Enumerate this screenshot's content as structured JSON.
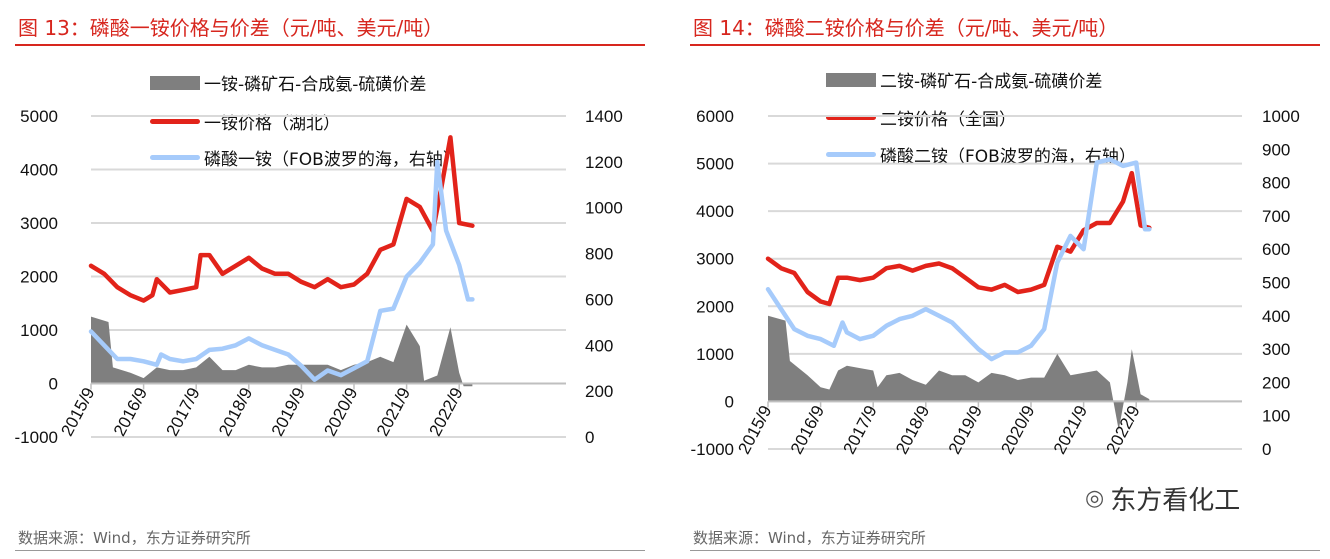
{
  "watermark": "东方看化工",
  "chart_data": [
    {
      "type": "line+area",
      "title": "图 13：磷酸一铵价格与价差（元/吨、美元/吨）",
      "source": "数据来源：Wind，东方证券研究所",
      "x_ticks": [
        "2015/9",
        "2016/9",
        "2017/9",
        "2018/9",
        "2019/9",
        "2020/9",
        "2021/9",
        "2022/9"
      ],
      "y_left": {
        "range": [
          -1000,
          5000
        ],
        "ticks": [
          "-1000",
          "0",
          "1000",
          "2000",
          "3000",
          "4000",
          "5000"
        ]
      },
      "y_right": {
        "range": [
          0,
          1400
        ],
        "ticks": [
          "0",
          "200",
          "400",
          "600",
          "800",
          "1000",
          "1200",
          "1400"
        ]
      },
      "grid": true,
      "legend_placement": "top-center",
      "series": [
        {
          "name": "一铵-磷矿石-合成氨-硫磺价差",
          "kind": "area",
          "axis": "left",
          "color": "#7f7f7f",
          "x": [
            "2015-09",
            "2016-01",
            "2016-02",
            "2016-06",
            "2016-09",
            "2016-12",
            "2017-03",
            "2017-06",
            "2017-09",
            "2017-12",
            "2018-03",
            "2018-06",
            "2018-09",
            "2018-12",
            "2019-03",
            "2019-06",
            "2019-09",
            "2019-12",
            "2020-03",
            "2020-06",
            "2020-09",
            "2020-12",
            "2021-03",
            "2021-06",
            "2021-09",
            "2021-12",
            "2022-01",
            "2022-04",
            "2022-07",
            "2022-09",
            "2022-10",
            "2022-12"
          ],
          "y": [
            1250,
            1150,
            300,
            200,
            100,
            300,
            250,
            250,
            300,
            500,
            250,
            250,
            350,
            300,
            300,
            350,
            350,
            350,
            350,
            250,
            350,
            400,
            500,
            400,
            1100,
            700,
            50,
            150,
            1050,
            200,
            -50,
            -50
          ]
        },
        {
          "name": "一铵价格（湖北）",
          "kind": "line",
          "axis": "left",
          "color": "#e2231a",
          "x": [
            "2015-09",
            "2015-12",
            "2016-03",
            "2016-06",
            "2016-09",
            "2016-11",
            "2016-12",
            "2017-03",
            "2017-06",
            "2017-09",
            "2017-10",
            "2017-12",
            "2018-03",
            "2018-06",
            "2018-09",
            "2018-12",
            "2019-03",
            "2019-06",
            "2019-09",
            "2019-12",
            "2020-03",
            "2020-06",
            "2020-09",
            "2020-12",
            "2021-03",
            "2021-06",
            "2021-09",
            "2021-12",
            "2022-03",
            "2022-05",
            "2022-07",
            "2022-09",
            "2022-12"
          ],
          "y": [
            2200,
            2050,
            1800,
            1650,
            1550,
            1650,
            1950,
            1700,
            1750,
            1800,
            2400,
            2400,
            2050,
            2200,
            2350,
            2150,
            2050,
            2050,
            1900,
            1800,
            1950,
            1800,
            1850,
            2050,
            2500,
            2600,
            3450,
            3300,
            2850,
            3700,
            4600,
            3000,
            2950
          ]
        },
        {
          "name": "磷酸一铵（FOB波罗的海，右轴）",
          "kind": "line",
          "axis": "right",
          "color": "#a6cbfb",
          "x": [
            "2015-09",
            "2015-12",
            "2016-03",
            "2016-06",
            "2016-09",
            "2016-12",
            "2017-01",
            "2017-03",
            "2017-06",
            "2017-09",
            "2017-12",
            "2018-03",
            "2018-06",
            "2018-09",
            "2018-12",
            "2019-03",
            "2019-06",
            "2019-09",
            "2019-12",
            "2020-03",
            "2020-06",
            "2020-09",
            "2020-12",
            "2021-03",
            "2021-06",
            "2021-09",
            "2021-12",
            "2022-03",
            "2022-04",
            "2022-06",
            "2022-09",
            "2022-11",
            "2022-12"
          ],
          "y": [
            460,
            400,
            340,
            340,
            330,
            315,
            360,
            340,
            330,
            340,
            380,
            385,
            400,
            430,
            400,
            380,
            360,
            310,
            250,
            290,
            270,
            300,
            330,
            550,
            560,
            700,
            760,
            840,
            1200,
            900,
            750,
            600,
            600
          ]
        }
      ]
    },
    {
      "type": "line+area",
      "title": "图 14：磷酸二铵价格与价差（元/吨、美元/吨）",
      "source": "数据来源：Wind，东方证券研究所",
      "x_ticks": [
        "2015/9",
        "2016/9",
        "2017/9",
        "2018/9",
        "2019/9",
        "2020/9",
        "2021/9",
        "2022/9"
      ],
      "y_left": {
        "range": [
          -1000,
          6000
        ],
        "ticks": [
          "-1000",
          "0",
          "1000",
          "2000",
          "3000",
          "4000",
          "5000",
          "6000"
        ]
      },
      "y_right": {
        "range": [
          0,
          1000
        ],
        "ticks": [
          "0",
          "100",
          "200",
          "300",
          "400",
          "500",
          "600",
          "700",
          "800",
          "900",
          "1000"
        ]
      },
      "grid": true,
      "legend_placement": "top-center",
      "series": [
        {
          "name": "二铵-磷矿石-合成氨-硫磺价差",
          "kind": "area",
          "axis": "left",
          "color": "#7f7f7f",
          "x": [
            "2015-09",
            "2016-01",
            "2016-02",
            "2016-06",
            "2016-09",
            "2016-11",
            "2017-01",
            "2017-03",
            "2017-06",
            "2017-09",
            "2017-10",
            "2017-12",
            "2018-03",
            "2018-06",
            "2018-09",
            "2018-12",
            "2019-03",
            "2019-06",
            "2019-09",
            "2019-12",
            "2020-03",
            "2020-06",
            "2020-09",
            "2020-12",
            "2021-03",
            "2021-06",
            "2021-09",
            "2021-12",
            "2022-03",
            "2022-05",
            "2022-07",
            "2022-08",
            "2022-10",
            "2022-12"
          ],
          "y": [
            1800,
            1700,
            850,
            550,
            300,
            250,
            650,
            750,
            700,
            650,
            300,
            550,
            600,
            450,
            350,
            650,
            550,
            550,
            400,
            600,
            550,
            450,
            500,
            500,
            1000,
            550,
            600,
            650,
            400,
            -600,
            400,
            1100,
            150,
            50
          ]
        },
        {
          "name": "二铵价格（全国）",
          "kind": "line",
          "axis": "left",
          "color": "#e2231a",
          "x": [
            "2015-09",
            "2015-12",
            "2016-03",
            "2016-06",
            "2016-09",
            "2016-11",
            "2017-01",
            "2017-03",
            "2017-06",
            "2017-09",
            "2017-12",
            "2018-03",
            "2018-06",
            "2018-09",
            "2018-12",
            "2019-03",
            "2019-06",
            "2019-09",
            "2019-12",
            "2020-03",
            "2020-06",
            "2020-09",
            "2020-12",
            "2021-03",
            "2021-06",
            "2021-09",
            "2021-12",
            "2022-03",
            "2022-06",
            "2022-08",
            "2022-10",
            "2022-12"
          ],
          "y": [
            3000,
            2800,
            2700,
            2300,
            2100,
            2050,
            2600,
            2600,
            2550,
            2600,
            2800,
            2850,
            2750,
            2850,
            2900,
            2800,
            2600,
            2400,
            2350,
            2450,
            2300,
            2350,
            2450,
            3250,
            3150,
            3600,
            3750,
            3750,
            4200,
            4800,
            3700,
            3650
          ]
        },
        {
          "name": "磷酸二铵（FOB波罗的海，右轴）",
          "kind": "line",
          "axis": "right",
          "color": "#a6cbfb",
          "x": [
            "2015-09",
            "2015-12",
            "2016-03",
            "2016-06",
            "2016-09",
            "2016-12",
            "2017-02",
            "2017-03",
            "2017-06",
            "2017-09",
            "2017-12",
            "2018-03",
            "2018-06",
            "2018-09",
            "2018-12",
            "2019-03",
            "2019-06",
            "2019-09",
            "2019-12",
            "2020-03",
            "2020-06",
            "2020-09",
            "2020-12",
            "2021-03",
            "2021-06",
            "2021-09",
            "2021-12",
            "2022-03",
            "2022-06",
            "2022-09",
            "2022-11",
            "2022-12"
          ],
          "y": [
            480,
            420,
            360,
            340,
            330,
            310,
            380,
            350,
            330,
            340,
            370,
            390,
            400,
            420,
            400,
            380,
            340,
            300,
            270,
            290,
            290,
            310,
            360,
            560,
            640,
            600,
            860,
            870,
            850,
            860,
            660,
            660
          ]
        }
      ]
    }
  ]
}
